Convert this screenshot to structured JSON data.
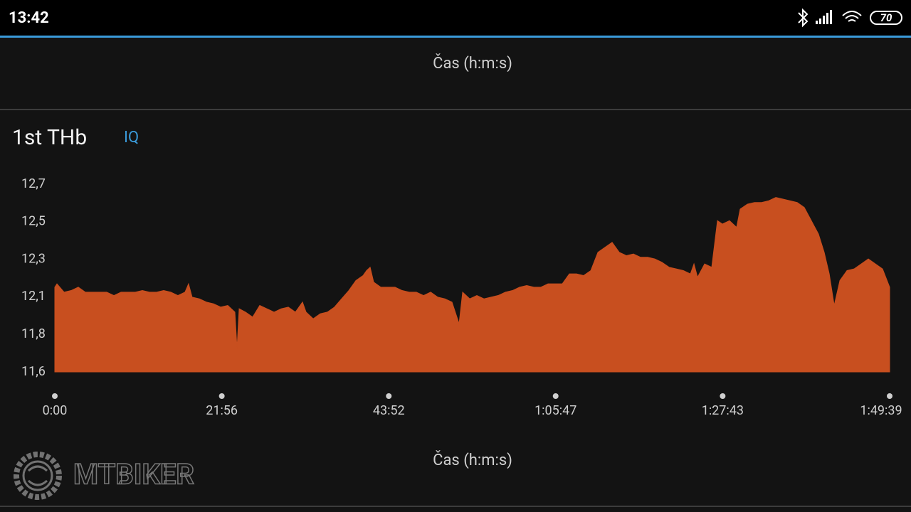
{
  "status_bar": {
    "time": "13:42",
    "battery": "70"
  },
  "header_axis_label": "Čas (h:m:s)",
  "watermark": "MTBIKER",
  "chart_data": {
    "type": "area",
    "title": "1st THb",
    "badge": "IQ",
    "xlabel": "Čas (h:m:s)",
    "color": "#c84f1f",
    "x": [
      0,
      17,
      73,
      129,
      185,
      241,
      297,
      353,
      409,
      466,
      522,
      578,
      634,
      690,
      746,
      802,
      858,
      914,
      970,
      1026,
      1054,
      1082,
      1139,
      1195,
      1251,
      1307,
      1363,
      1419,
      1436,
      1453,
      1503,
      1559,
      1615,
      1671,
      1728,
      1784,
      1840,
      1896,
      1952,
      1980,
      2036,
      2092,
      2148,
      2204,
      2260,
      2317,
      2373,
      2429,
      2457,
      2485,
      2513,
      2569,
      2625,
      2681,
      2737,
      2793,
      2849,
      2906,
      2962,
      3018,
      3074,
      3130,
      3186,
      3214,
      3270,
      3326,
      3382,
      3438,
      3494,
      3551,
      3607,
      3663,
      3719,
      3775,
      3831,
      3887,
      3943,
      3999,
      4055,
      4111,
      4167,
      4224,
      4280,
      4336,
      4392,
      4448,
      4504,
      4560,
      4616,
      4672,
      4728,
      4784,
      4841,
      4897,
      4953,
      5009,
      5037,
      5065,
      5121,
      5177,
      5222,
      5261,
      5317,
      5373,
      5401,
      5458,
      5514,
      5570,
      5626,
      5682,
      5738,
      5794,
      5850,
      5906,
      5962,
      6018,
      6063,
      6103,
      6142,
      6187,
      6243,
      6299,
      6355,
      6411,
      6467,
      6523,
      6579
    ],
    "values": [
      12.11,
      12.13,
      12.08,
      12.09,
      12.11,
      12.08,
      12.08,
      12.08,
      12.08,
      12.06,
      12.08,
      12.08,
      12.08,
      12.09,
      12.08,
      12.08,
      12.09,
      12.08,
      12.06,
      12.08,
      12.13,
      12.05,
      12.04,
      12.02,
      12.01,
      11.99,
      12.0,
      11.96,
      11.74,
      11.98,
      11.96,
      11.93,
      12.0,
      11.98,
      11.96,
      11.98,
      11.99,
      11.96,
      12.02,
      11.96,
      11.92,
      11.95,
      11.96,
      11.99,
      12.04,
      12.09,
      12.15,
      12.18,
      12.21,
      12.23,
      12.14,
      12.11,
      12.11,
      12.11,
      12.09,
      12.08,
      12.08,
      12.06,
      12.08,
      12.05,
      12.04,
      12.02,
      11.89,
      12.08,
      12.04,
      12.06,
      12.04,
      12.05,
      12.06,
      12.08,
      12.09,
      12.11,
      12.12,
      12.11,
      12.11,
      12.13,
      12.13,
      12.13,
      12.19,
      12.19,
      12.18,
      12.21,
      12.32,
      12.35,
      12.38,
      12.32,
      12.3,
      12.31,
      12.29,
      12.29,
      12.28,
      12.26,
      12.23,
      12.22,
      12.21,
      12.19,
      12.25,
      12.17,
      12.25,
      12.23,
      12.51,
      12.49,
      12.51,
      12.47,
      12.58,
      12.61,
      12.62,
      12.62,
      12.63,
      12.65,
      12.64,
      12.63,
      12.62,
      12.59,
      12.51,
      12.43,
      12.32,
      12.19,
      12.0,
      12.15,
      12.21,
      12.22,
      12.25,
      12.28,
      12.25,
      12.22,
      12.11
    ],
    "xlim": [
      0,
      6579
    ],
    "ylim": [
      11.6,
      12.73
    ],
    "xticks": [
      {
        "value": 0,
        "label": "0:00"
      },
      {
        "value": 1316,
        "label": "21:56"
      },
      {
        "value": 2632,
        "label": "43:52"
      },
      {
        "value": 3947,
        "label": "1:05:47"
      },
      {
        "value": 5263,
        "label": "1:27:43"
      },
      {
        "value": 6579,
        "label": "1:49:39"
      }
    ],
    "yticks": [
      {
        "value": 11.6,
        "label": "11,6"
      },
      {
        "value": 11.826,
        "label": "11,8"
      },
      {
        "value": 12.052,
        "label": "12,1"
      },
      {
        "value": 12.278,
        "label": "12,3"
      },
      {
        "value": 12.504,
        "label": "12,5"
      },
      {
        "value": 12.73,
        "label": "12,7"
      }
    ]
  }
}
